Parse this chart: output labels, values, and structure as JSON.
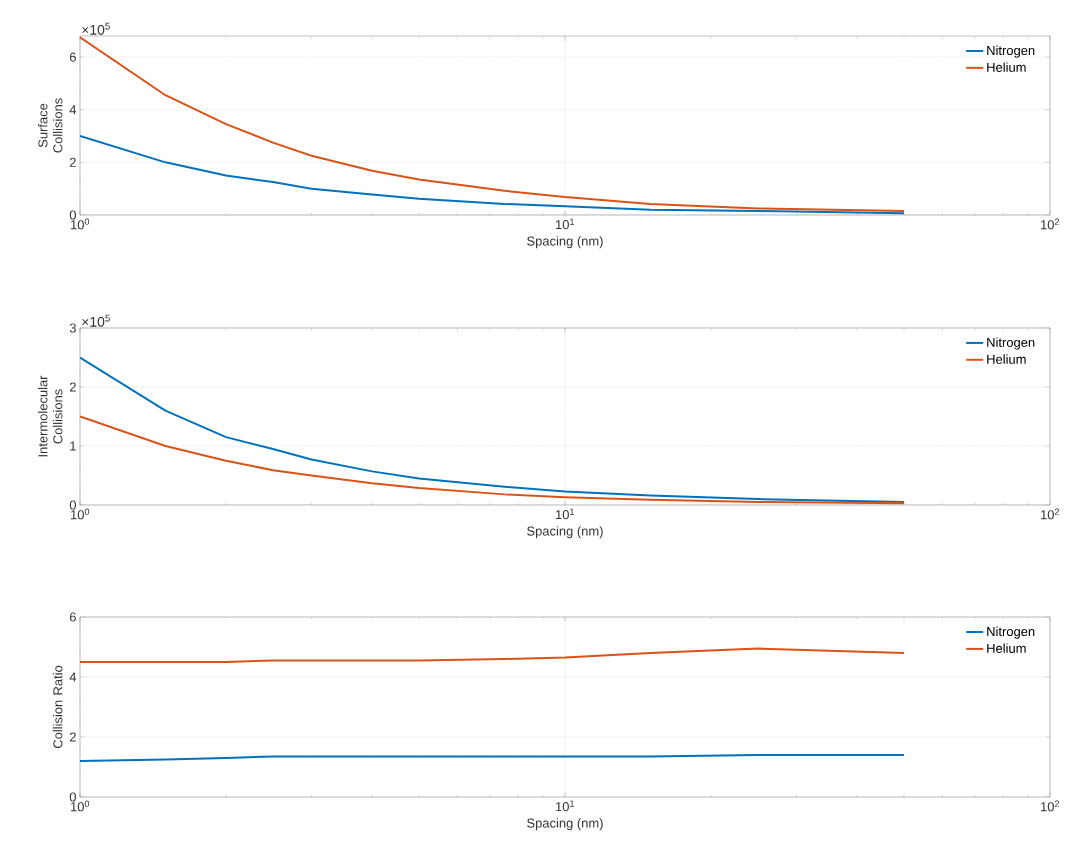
{
  "chart_data": [
    {
      "type": "line",
      "ylabel": "Surface\nCollisions",
      "xlabel": "Spacing (nm)",
      "log": "x",
      "grid": true,
      "legend": "top right",
      "x": [
        1,
        1.5,
        2,
        2.5,
        3,
        4,
        5,
        7.5,
        10,
        15,
        25,
        50
      ],
      "xlim": [
        1,
        100
      ],
      "xticks": [
        {
          "value": 1,
          "label": "10$^{0}$"
        },
        {
          "value": 10,
          "label": "10$^{1}$"
        },
        {
          "value": 100,
          "label": "10$^{2}$"
        }
      ],
      "ylim": [
        0,
        6.8
      ],
      "yticks": [
        0,
        2,
        4,
        6
      ],
      "annotations": [
        "×10$^{5}$"
      ],
      "series": [
        {
          "name": "Nitrogen",
          "color": "#0072bd",
          "values": [
            3.0,
            2.0,
            1.5,
            1.25,
            1.0,
            0.78,
            0.62,
            0.42,
            0.33,
            0.2,
            0.15,
            0.07
          ]
        },
        {
          "name": "Helium",
          "color": "#d95319",
          "values": [
            6.75,
            4.55,
            3.45,
            2.75,
            2.25,
            1.68,
            1.35,
            0.92,
            0.68,
            0.42,
            0.25,
            0.15
          ]
        }
      ]
    },
    {
      "type": "line",
      "ylabel": "Intermolecular\nCollisions",
      "xlabel": "Spacing (nm)",
      "log": "x",
      "grid": true,
      "legend": "top right",
      "x": [
        1,
        1.5,
        2,
        2.5,
        3,
        4,
        5,
        7.5,
        10,
        15,
        25,
        50
      ],
      "xlim": [
        1,
        100
      ],
      "xticks": [
        {
          "value": 1,
          "label": "10$^{0}$"
        },
        {
          "value": 10,
          "label": "10$^{1}$"
        },
        {
          "value": 100,
          "label": "10$^{2}$"
        }
      ],
      "ylim": [
        0,
        3
      ],
      "yticks": [
        0,
        1,
        2,
        3
      ],
      "annotations": [
        "×10$^{5}$"
      ],
      "series": [
        {
          "name": "Nitrogen",
          "color": "#0072bd",
          "values": [
            2.5,
            1.6,
            1.15,
            0.95,
            0.77,
            0.57,
            0.45,
            0.31,
            0.23,
            0.16,
            0.1,
            0.05
          ]
        },
        {
          "name": "Helium",
          "color": "#d95319",
          "values": [
            1.5,
            1.0,
            0.75,
            0.59,
            0.5,
            0.37,
            0.29,
            0.18,
            0.13,
            0.09,
            0.05,
            0.03
          ]
        }
      ]
    },
    {
      "type": "line",
      "ylabel": "Collision Ratio",
      "xlabel": "Spacing (nm)",
      "log": "x",
      "grid": true,
      "legend": "top right",
      "x": [
        1,
        1.5,
        2,
        2.5,
        3,
        4,
        5,
        7.5,
        10,
        15,
        25,
        50
      ],
      "xlim": [
        1,
        100
      ],
      "xticks": [
        {
          "value": 1,
          "label": "10$^{0}$"
        },
        {
          "value": 10,
          "label": "10$^{1}$"
        },
        {
          "value": 100,
          "label": "10$^{2}$"
        }
      ],
      "ylim": [
        0,
        6
      ],
      "yticks": [
        0,
        2,
        4,
        6
      ],
      "series": [
        {
          "name": "Nitrogen",
          "color": "#0072bd",
          "values": [
            1.2,
            1.25,
            1.3,
            1.35,
            1.35,
            1.35,
            1.35,
            1.35,
            1.35,
            1.35,
            1.4,
            1.4
          ]
        },
        {
          "name": "Helium",
          "color": "#d95319",
          "values": [
            4.5,
            4.5,
            4.5,
            4.55,
            4.55,
            4.55,
            4.55,
            4.6,
            4.65,
            4.8,
            4.95,
            4.8
          ]
        }
      ]
    }
  ]
}
